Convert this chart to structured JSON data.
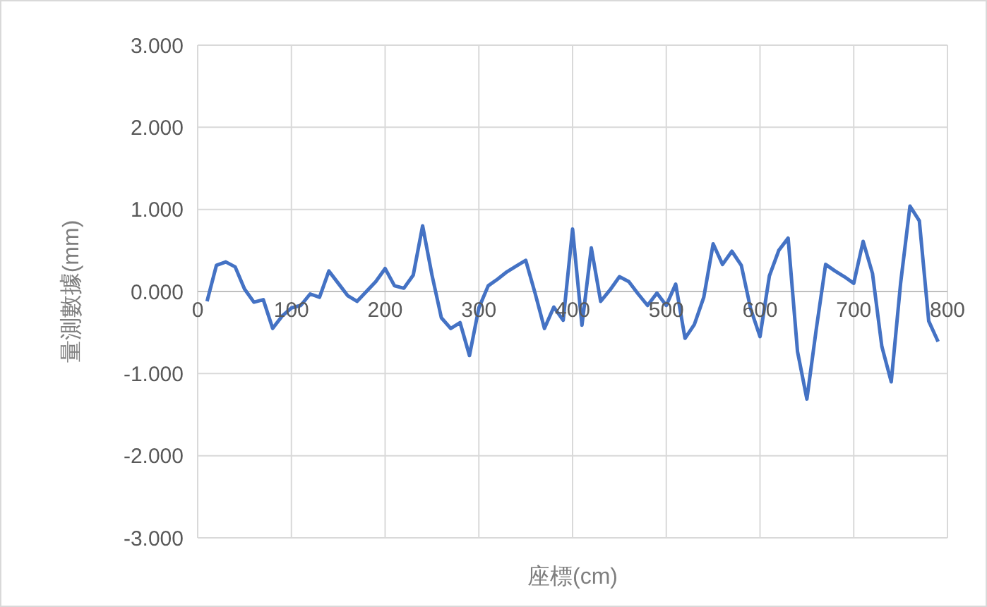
{
  "chart_data": {
    "type": "line",
    "xlabel": "座標(cm)",
    "ylabel": "量測數據(mm)",
    "x": [
      10,
      20,
      30,
      40,
      50,
      60,
      70,
      80,
      90,
      100,
      110,
      120,
      130,
      140,
      150,
      160,
      170,
      180,
      190,
      200,
      210,
      220,
      230,
      240,
      250,
      260,
      270,
      280,
      290,
      300,
      310,
      320,
      330,
      340,
      350,
      360,
      370,
      380,
      390,
      400,
      410,
      420,
      430,
      440,
      450,
      460,
      470,
      480,
      490,
      500,
      510,
      520,
      530,
      540,
      550,
      560,
      570,
      580,
      590,
      600,
      610,
      620,
      630,
      640,
      650,
      660,
      670,
      680,
      690,
      700,
      710,
      720,
      730,
      740,
      750,
      760,
      770,
      780,
      790
    ],
    "series": [
      {
        "color": "#4472c4",
        "values": [
          -0.12,
          0.32,
          0.36,
          0.3,
          0.03,
          -0.13,
          -0.1,
          -0.45,
          -0.3,
          -0.2,
          -0.17,
          -0.03,
          -0.07,
          0.25,
          0.1,
          -0.05,
          -0.12,
          0.0,
          0.12,
          0.28,
          0.07,
          0.04,
          0.2,
          0.8,
          0.2,
          -0.32,
          -0.45,
          -0.38,
          -0.78,
          -0.2,
          0.07,
          0.15,
          0.24,
          0.31,
          0.38,
          -0.02,
          -0.45,
          -0.19,
          -0.35,
          0.76,
          -0.41,
          0.53,
          -0.12,
          0.02,
          0.18,
          0.12,
          -0.03,
          -0.17,
          -0.02,
          -0.17,
          0.09,
          -0.57,
          -0.4,
          -0.07,
          0.58,
          0.33,
          0.49,
          0.32,
          -0.21,
          -0.55,
          0.19,
          0.5,
          0.65,
          -0.73,
          -1.31,
          -0.46,
          0.33,
          0.25,
          0.18,
          0.1,
          0.61,
          0.22,
          -0.67,
          -1.1,
          0.1,
          1.04,
          0.86,
          -0.36,
          -0.61
        ]
      }
    ],
    "xlim": [
      0,
      800
    ],
    "xticks": [
      0,
      100,
      200,
      300,
      400,
      500,
      600,
      700,
      800
    ],
    "ylim": [
      -3,
      3
    ],
    "yticks": [
      {
        "value": -3,
        "label": "-3.000"
      },
      {
        "value": -2,
        "label": "-2.000"
      },
      {
        "value": -1,
        "label": "-1.000"
      },
      {
        "value": 0,
        "label": "0.000"
      },
      {
        "value": 1,
        "label": "1.000"
      },
      {
        "value": 2,
        "label": "2.000"
      },
      {
        "value": 3,
        "label": "3.000"
      }
    ],
    "grid": true,
    "line_style": "solid",
    "marker": "none"
  }
}
